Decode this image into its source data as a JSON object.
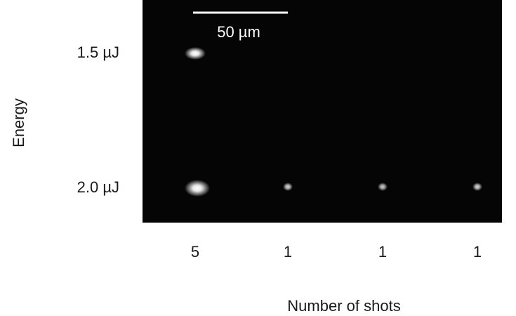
{
  "figure": {
    "axis_label_y": "Energy",
    "row_labels": [
      "1.5 µJ",
      "2.0 µJ"
    ],
    "column_labels": [
      "5",
      "1",
      "1",
      "1"
    ],
    "axis_label_x": "Number of shots",
    "scale_bar": "50 µm"
  }
}
